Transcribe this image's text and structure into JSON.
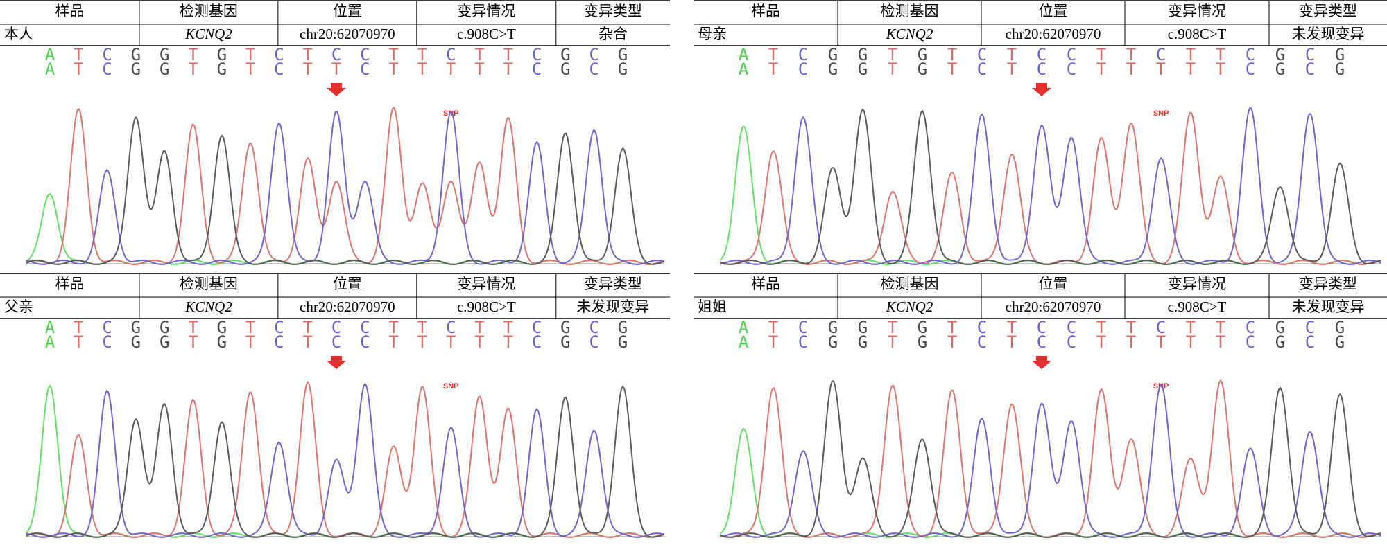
{
  "panels": [
    {
      "table": {
        "headers": [
          "样品",
          "检测基因",
          "位置",
          "变异情况",
          "变异类型"
        ],
        "row": [
          "本人",
          "KCNQ2",
          "chr20:62070970",
          "c.908C>T",
          "杂合"
        ]
      },
      "bases": {
        "top": [
          "A",
          "T",
          "C",
          "G",
          "G",
          "T",
          "G",
          "T",
          "C",
          "T",
          "C",
          "C",
          "T",
          "T",
          "C",
          "T",
          "T",
          "C",
          "G",
          "C",
          "G"
        ],
        "bottom": [
          "A",
          "T",
          "C",
          "G",
          "G",
          "T",
          "G",
          "T",
          "C",
          "T",
          "T",
          "C",
          "T",
          "T",
          "T",
          "T",
          "T",
          "C",
          "G",
          "C",
          "G"
        ]
      },
      "snp_label": "SNP"
    },
    {
      "table": {
        "headers": [
          "样品",
          "检测基因",
          "位置",
          "变异情况",
          "变异类型"
        ],
        "row": [
          "母亲",
          "KCNQ2",
          "chr20:62070970",
          "c.908C>T",
          "未发现变异"
        ]
      },
      "bases": {
        "top": [
          "A",
          "T",
          "C",
          "G",
          "G",
          "T",
          "G",
          "T",
          "C",
          "T",
          "C",
          "C",
          "T",
          "T",
          "C",
          "T",
          "T",
          "C",
          "G",
          "C",
          "G"
        ],
        "bottom": [
          "A",
          "T",
          "C",
          "G",
          "G",
          "T",
          "G",
          "T",
          "C",
          "T",
          "C",
          "C",
          "T",
          "T",
          "T",
          "T",
          "T",
          "C",
          "G",
          "C",
          "G"
        ]
      },
      "snp_label": "SNP"
    },
    {
      "table": {
        "headers": [
          "样品",
          "检测基因",
          "位置",
          "变异情况",
          "变异类型"
        ],
        "row": [
          "父亲",
          "KCNQ2",
          "chr20:62070970",
          "c.908C>T",
          "未发现变异"
        ]
      },
      "bases": {
        "top": [
          "A",
          "T",
          "C",
          "G",
          "G",
          "T",
          "G",
          "T",
          "C",
          "T",
          "C",
          "C",
          "T",
          "T",
          "C",
          "T",
          "T",
          "C",
          "G",
          "C",
          "G"
        ],
        "bottom": [
          "A",
          "T",
          "C",
          "G",
          "G",
          "T",
          "G",
          "T",
          "C",
          "T",
          "C",
          "C",
          "T",
          "T",
          "T",
          "T",
          "T",
          "C",
          "G",
          "C",
          "G"
        ]
      },
      "snp_label": "SNP"
    },
    {
      "table": {
        "headers": [
          "样品",
          "检测基因",
          "位置",
          "变异情况",
          "变异类型"
        ],
        "row": [
          "姐姐",
          "KCNQ2",
          "chr20:62070970",
          "c.908C>T",
          "未发现变异"
        ]
      },
      "bases": {
        "top": [
          "A",
          "T",
          "C",
          "G",
          "G",
          "T",
          "G",
          "T",
          "C",
          "T",
          "C",
          "C",
          "T",
          "T",
          "C",
          "T",
          "T",
          "C",
          "G",
          "C",
          "G"
        ],
        "bottom": [
          "A",
          "T",
          "C",
          "G",
          "G",
          "T",
          "G",
          "T",
          "C",
          "T",
          "C",
          "C",
          "T",
          "T",
          "T",
          "T",
          "T",
          "C",
          "G",
          "C",
          "G"
        ]
      },
      "snp_label": "SNP"
    }
  ]
}
